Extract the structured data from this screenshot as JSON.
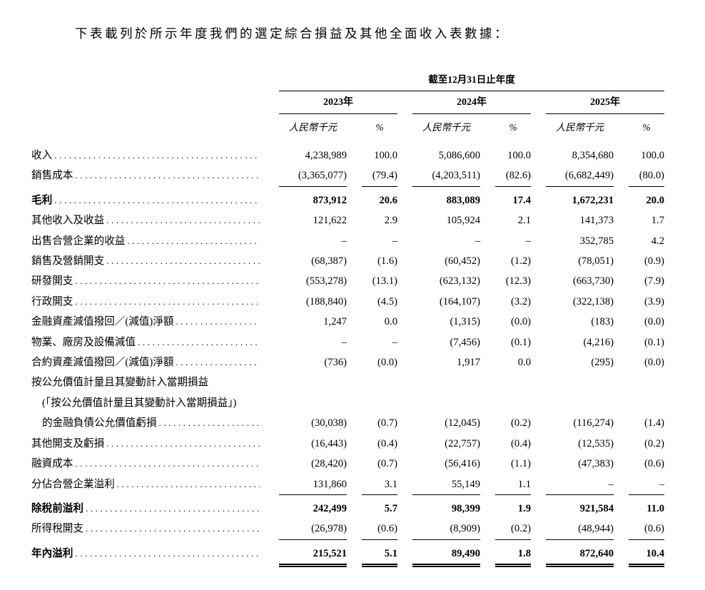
{
  "page": {
    "title": "下表載列於所示年度我們的選定綜合損益及其他全面收入表數據："
  },
  "colors": {
    "background": "#ffffff",
    "text": "#000000",
    "rule": "#000000"
  },
  "table": {
    "period_header": "截至12月31日止年度",
    "year_headers": [
      "2023年",
      "2024年",
      "2025年"
    ],
    "unit_label": "人民幣千元",
    "pct_label": "%",
    "rows": [
      {
        "label": "收入",
        "cells": [
          "4,238,989",
          "100.0",
          "5,086,600",
          "100.0",
          "8,354,680",
          "100.0"
        ]
      },
      {
        "label": "銷售成本",
        "cells": [
          "(3,365,077)",
          "(79.4)",
          "(4,203,511)",
          "(82.6)",
          "(6,682,449)",
          "(80.0)"
        ]
      },
      {
        "label": "毛利",
        "cells": [
          "873,912",
          "20.6",
          "883,089",
          "17.4",
          "1,672,231",
          "20.0"
        ]
      },
      {
        "label": "其他收入及收益",
        "cells": [
          "121,622",
          "2.9",
          "105,924",
          "2.1",
          "141,373",
          "1.7"
        ]
      },
      {
        "label": "出售合營企業的收益",
        "cells": [
          "–",
          "–",
          "–",
          "–",
          "352,785",
          "4.2"
        ]
      },
      {
        "label": "銷售及營銷開支",
        "cells": [
          "(68,387)",
          "(1.6)",
          "(60,452)",
          "(1.2)",
          "(78,051)",
          "(0.9)"
        ]
      },
      {
        "label": "研發開支",
        "cells": [
          "(553,278)",
          "(13.1)",
          "(623,132)",
          "(12.3)",
          "(663,730)",
          "(7.9)"
        ]
      },
      {
        "label": "行政開支",
        "cells": [
          "(188,840)",
          "(4.5)",
          "(164,107)",
          "(3.2)",
          "(322,138)",
          "(3.9)"
        ]
      },
      {
        "label": "金融資產減值撥回／(減值)淨額",
        "cells": [
          "1,247",
          "0.0",
          "(1,315)",
          "(0.0)",
          "(183)",
          "(0.0)"
        ]
      },
      {
        "label": "物業、廠房及設備減值",
        "cells": [
          "–",
          "–",
          "(7,456)",
          "(0.1)",
          "(4,216)",
          "(0.1)"
        ]
      },
      {
        "label": "合約資產減值撥回／(減值)淨額",
        "cells": [
          "(736)",
          "(0.0)",
          "1,917",
          "0.0",
          "(295)",
          "(0.0)"
        ]
      },
      {
        "label": "按公允價值計量且其變動計入當期損益"
      },
      {
        "label": "(「按公允價值計量且其變動計入當期損益」)"
      },
      {
        "label": "的金融負債公允價值虧損",
        "cells": [
          "(30,038)",
          "(0.7)",
          "(12,045)",
          "(0.2)",
          "(116,274)",
          "(1.4)"
        ]
      },
      {
        "label": "其他開支及虧損",
        "cells": [
          "(16,443)",
          "(0.4)",
          "(22,757)",
          "(0.4)",
          "(12,535)",
          "(0.2)"
        ]
      },
      {
        "label": "融資成本",
        "cells": [
          "(28,420)",
          "(0.7)",
          "(56,416)",
          "(1.1)",
          "(47,383)",
          "(0.6)"
        ]
      },
      {
        "label": "分佔合營企業溢利",
        "cells": [
          "131,860",
          "3.1",
          "55,149",
          "1.1",
          "–",
          "–"
        ]
      },
      {
        "label": "除稅前溢利",
        "cells": [
          "242,499",
          "5.7",
          "98,399",
          "1.9",
          "921,584",
          "11.0"
        ]
      },
      {
        "label": "所得稅開支",
        "cells": [
          "(26,978)",
          "(0.6)",
          "(8,909)",
          "(0.2)",
          "(48,944)",
          "(0.6)"
        ]
      },
      {
        "label": "年內溢利",
        "cells": [
          "215,521",
          "5.1",
          "89,490",
          "1.8",
          "872,640",
          "10.4"
        ]
      }
    ]
  }
}
